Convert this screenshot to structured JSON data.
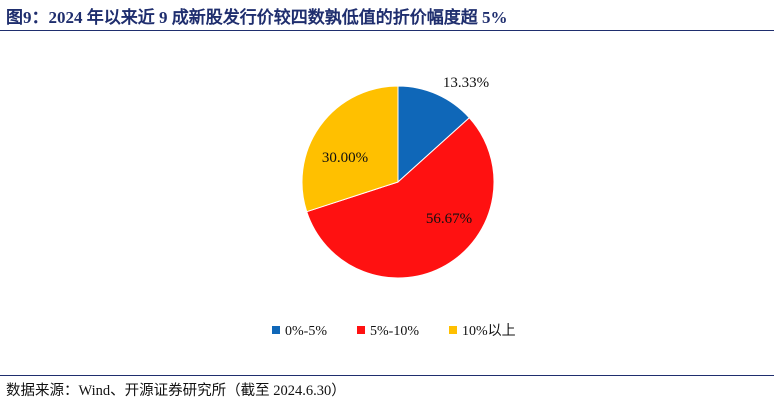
{
  "title": "图9：2024 年以来近 9 成新股发行价较四数孰低值的折价幅度超 5%",
  "source": "数据来源：Wind、开源证券研究所（截至 2024.6.30）",
  "chart_data": {
    "type": "pie",
    "start_angle_deg": 0,
    "direction": "clockwise",
    "slices": [
      {
        "label": "0%-5%",
        "value": 13.33,
        "value_label": "13.33%",
        "color": "#0f67b8"
      },
      {
        "label": "5%-10%",
        "value": 56.67,
        "value_label": "56.67%",
        "color": "#ff1111"
      },
      {
        "label": "10%以上",
        "value": 30.0,
        "value_label": "30.00%",
        "color": "#ffc000"
      }
    ],
    "legend_position": "bottom"
  }
}
